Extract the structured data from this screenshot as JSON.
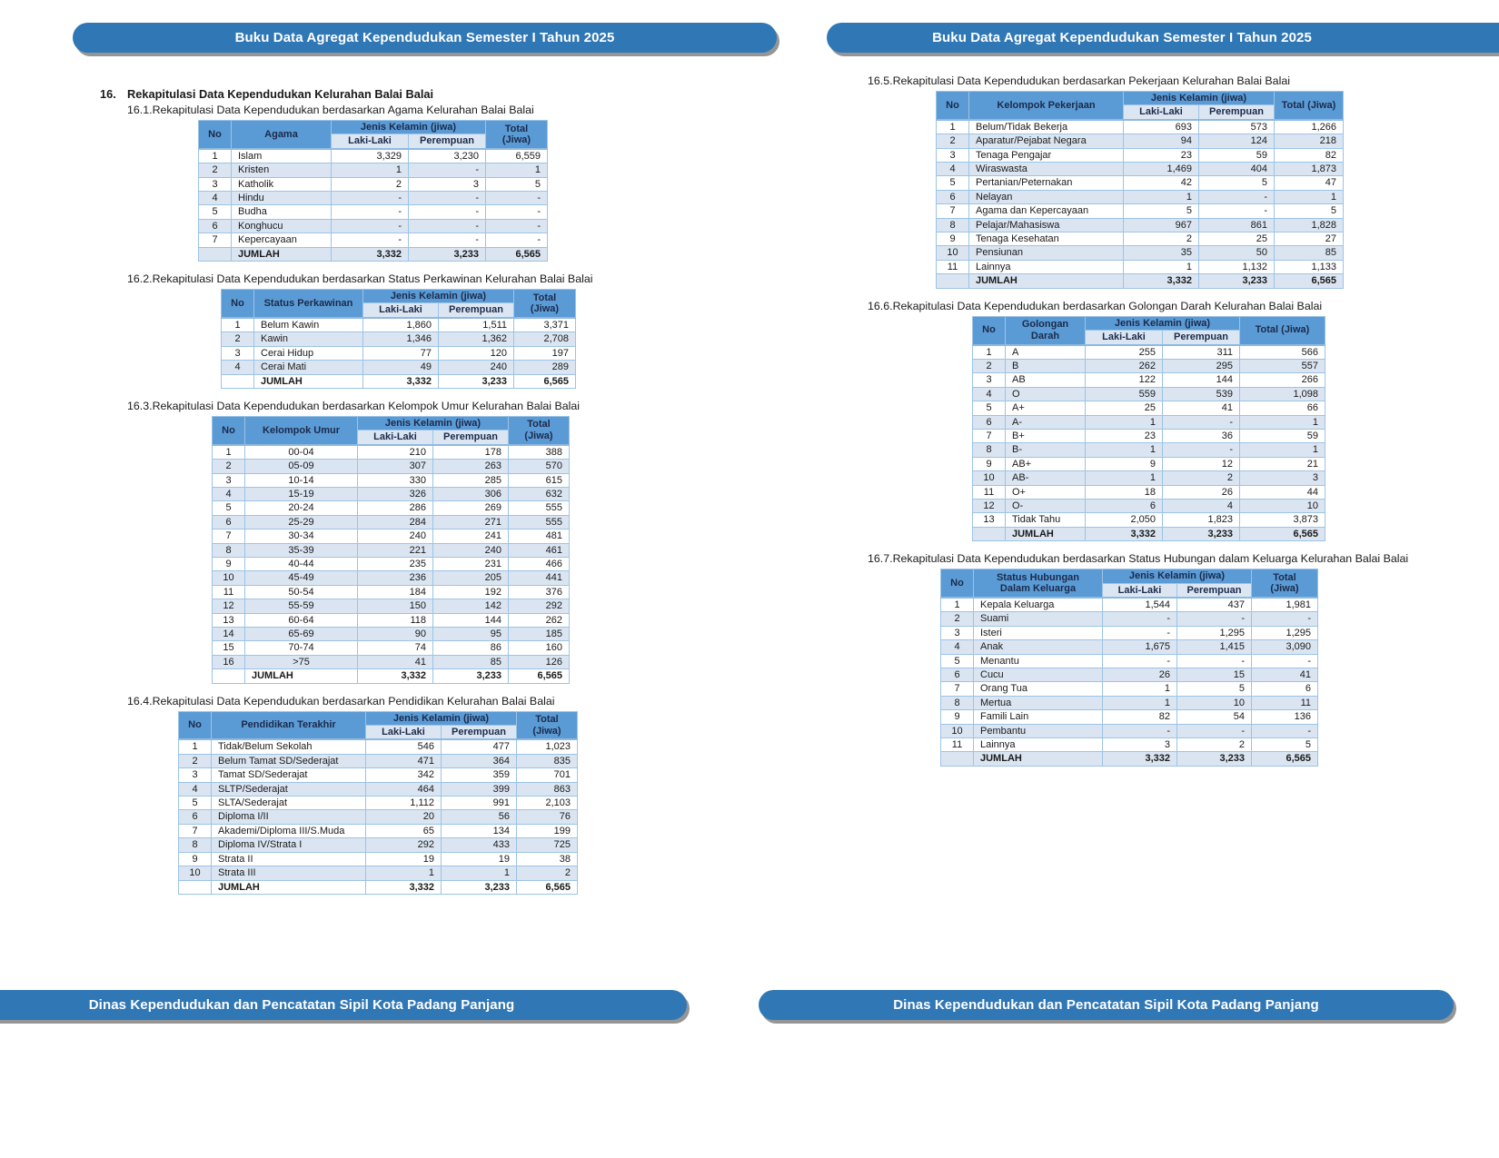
{
  "banner": {
    "header_title": "Buku Data Agregat Kependudukan Semester I Tahun 2025",
    "footer_title": "Dinas Kependudukan dan Pencatatan Sipil Kota Padang Panjang"
  },
  "section": {
    "number": "16.",
    "title": "Rekapitulasi Data Kependudukan Kelurahan Balai Balai"
  },
  "column_headers": {
    "no": "No",
    "gender_group": "Jenis Kelamin (jiwa)",
    "male": "Laki-Laki",
    "female": "Perempuan",
    "total": "Total (Jiwa)"
  },
  "sum_label": "JUMLAH",
  "colors": {
    "banner_blue": "#3077b5",
    "table_header_blue": "#5b9bd5",
    "subheader_blue": "#dce6f2",
    "alt_row_blue": "#dbe5f1",
    "border_blue": "#9cc3e6"
  },
  "tables": [
    {
      "number": "16.1.",
      "title": "Rekapitulasi Data Kependudukan berdasarkan Agama Kelurahan Balai Balai",
      "category_header": "Agama",
      "center_category": false,
      "rows": [
        [
          "1",
          "Islam",
          "3,329",
          "3,230",
          "6,559"
        ],
        [
          "2",
          "Kristen",
          "1",
          "-",
          "1"
        ],
        [
          "3",
          "Katholik",
          "2",
          "3",
          "5"
        ],
        [
          "4",
          "Hindu",
          "-",
          "-",
          "-"
        ],
        [
          "5",
          "Budha",
          "-",
          "-",
          "-"
        ],
        [
          "6",
          "Konghucu",
          "-",
          "-",
          "-"
        ],
        [
          "7",
          "Kepercayaan",
          "-",
          "-",
          "-"
        ]
      ],
      "total_row": [
        "3,332",
        "3,233",
        "6,565"
      ]
    },
    {
      "number": "16.2.",
      "title": "Rekapitulasi Data Kependudukan berdasarkan Status Perkawinan Kelurahan Balai Balai",
      "category_header": "Status Perkawinan",
      "center_category": false,
      "rows": [
        [
          "1",
          "Belum Kawin",
          "1,860",
          "1,511",
          "3,371"
        ],
        [
          "2",
          "Kawin",
          "1,346",
          "1,362",
          "2,708"
        ],
        [
          "3",
          "Cerai Hidup",
          "77",
          "120",
          "197"
        ],
        [
          "4",
          "Cerai Mati",
          "49",
          "240",
          "289"
        ]
      ],
      "total_row": [
        "3,332",
        "3,233",
        "6,565"
      ]
    },
    {
      "number": "16.3.",
      "title": "Rekapitulasi Data Kependudukan berdasarkan Kelompok Umur Kelurahan Balai Balai",
      "category_header": "Kelompok Umur",
      "center_category": true,
      "rows": [
        [
          "1",
          "00-04",
          "210",
          "178",
          "388"
        ],
        [
          "2",
          "05-09",
          "307",
          "263",
          "570"
        ],
        [
          "3",
          "10-14",
          "330",
          "285",
          "615"
        ],
        [
          "4",
          "15-19",
          "326",
          "306",
          "632"
        ],
        [
          "5",
          "20-24",
          "286",
          "269",
          "555"
        ],
        [
          "6",
          "25-29",
          "284",
          "271",
          "555"
        ],
        [
          "7",
          "30-34",
          "240",
          "241",
          "481"
        ],
        [
          "8",
          "35-39",
          "221",
          "240",
          "461"
        ],
        [
          "9",
          "40-44",
          "235",
          "231",
          "466"
        ],
        [
          "10",
          "45-49",
          "236",
          "205",
          "441"
        ],
        [
          "11",
          "50-54",
          "184",
          "192",
          "376"
        ],
        [
          "12",
          "55-59",
          "150",
          "142",
          "292"
        ],
        [
          "13",
          "60-64",
          "118",
          "144",
          "262"
        ],
        [
          "14",
          "65-69",
          "90",
          "95",
          "185"
        ],
        [
          "15",
          "70-74",
          "74",
          "86",
          "160"
        ],
        [
          "16",
          ">75",
          "41",
          "85",
          "126"
        ]
      ],
      "total_row": [
        "3,332",
        "3,233",
        "6,565"
      ]
    },
    {
      "number": "16.4.",
      "title": "Rekapitulasi Data Kependudukan berdasarkan Pendidikan Kelurahan Balai Balai",
      "category_header": "Pendidikan Terakhir",
      "center_category": false,
      "rows": [
        [
          "1",
          "Tidak/Belum Sekolah",
          "546",
          "477",
          "1,023"
        ],
        [
          "2",
          "Belum Tamat SD/Sederajat",
          "471",
          "364",
          "835"
        ],
        [
          "3",
          "Tamat SD/Sederajat",
          "342",
          "359",
          "701"
        ],
        [
          "4",
          "SLTP/Sederajat",
          "464",
          "399",
          "863"
        ],
        [
          "5",
          "SLTA/Sederajat",
          "1,112",
          "991",
          "2,103"
        ],
        [
          "6",
          "Diploma I/II",
          "20",
          "56",
          "76"
        ],
        [
          "7",
          "Akademi/Diploma III/S.Muda",
          "65",
          "134",
          "199"
        ],
        [
          "8",
          "Diploma IV/Strata I",
          "292",
          "433",
          "725"
        ],
        [
          "9",
          "Strata II",
          "19",
          "19",
          "38"
        ],
        [
          "10",
          "Strata III",
          "1",
          "1",
          "2"
        ]
      ],
      "total_row": [
        "3,332",
        "3,233",
        "6,565"
      ]
    },
    {
      "number": "16.5.",
      "title": "Rekapitulasi Data Kependudukan berdasarkan Pekerjaan Kelurahan Balai Balai",
      "category_header": "Kelompok Pekerjaan",
      "center_category": false,
      "rows": [
        [
          "1",
          "Belum/Tidak Bekerja",
          "693",
          "573",
          "1,266"
        ],
        [
          "2",
          "Aparatur/Pejabat Negara",
          "94",
          "124",
          "218"
        ],
        [
          "3",
          "Tenaga Pengajar",
          "23",
          "59",
          "82"
        ],
        [
          "4",
          "Wiraswasta",
          "1,469",
          "404",
          "1,873"
        ],
        [
          "5",
          "Pertanian/Peternakan",
          "42",
          "5",
          "47"
        ],
        [
          "6",
          "Nelayan",
          "1",
          "-",
          "1"
        ],
        [
          "7",
          "Agama dan Kepercayaan",
          "5",
          "-",
          "5"
        ],
        [
          "8",
          "Pelajar/Mahasiswa",
          "967",
          "861",
          "1,828"
        ],
        [
          "9",
          "Tenaga Kesehatan",
          "2",
          "25",
          "27"
        ],
        [
          "10",
          "Pensiunan",
          "35",
          "50",
          "85"
        ],
        [
          "11",
          "Lainnya",
          "1",
          "1,132",
          "1,133"
        ]
      ],
      "total_row": [
        "3,332",
        "3,233",
        "6,565"
      ]
    },
    {
      "number": "16.6.",
      "title": "Rekapitulasi Data Kependudukan berdasarkan Golongan Darah Kelurahan Balai Balai",
      "category_header": "Golongan Darah",
      "center_category": false,
      "rows": [
        [
          "1",
          "A",
          "255",
          "311",
          "566"
        ],
        [
          "2",
          "B",
          "262",
          "295",
          "557"
        ],
        [
          "3",
          "AB",
          "122",
          "144",
          "266"
        ],
        [
          "4",
          "O",
          "559",
          "539",
          "1,098"
        ],
        [
          "5",
          "A+",
          "25",
          "41",
          "66"
        ],
        [
          "6",
          "A-",
          "1",
          "-",
          "1"
        ],
        [
          "7",
          "B+",
          "23",
          "36",
          "59"
        ],
        [
          "8",
          "B-",
          "1",
          "-",
          "1"
        ],
        [
          "9",
          "AB+",
          "9",
          "12",
          "21"
        ],
        [
          "10",
          "AB-",
          "1",
          "2",
          "3"
        ],
        [
          "11",
          "O+",
          "18",
          "26",
          "44"
        ],
        [
          "12",
          "O-",
          "6",
          "4",
          "10"
        ],
        [
          "13",
          "Tidak Tahu",
          "2,050",
          "1,823",
          "3,873"
        ]
      ],
      "total_row": [
        "3,332",
        "3,233",
        "6,565"
      ]
    },
    {
      "number": "16.7.",
      "title": "Rekapitulasi Data Kependudukan berdasarkan Status Hubungan dalam Keluarga Kelurahan Balai Balai",
      "category_header": "Status Hubungan Dalam Keluarga",
      "center_category": false,
      "rows": [
        [
          "1",
          "Kepala Keluarga",
          "1,544",
          "437",
          "1,981"
        ],
        [
          "2",
          "Suami",
          "-",
          "-",
          "-"
        ],
        [
          "3",
          "Isteri",
          "-",
          "1,295",
          "1,295"
        ],
        [
          "4",
          "Anak",
          "1,675",
          "1,415",
          "3,090"
        ],
        [
          "5",
          "Menantu",
          "-",
          "-",
          "-"
        ],
        [
          "6",
          "Cucu",
          "26",
          "15",
          "41"
        ],
        [
          "7",
          "Orang Tua",
          "1",
          "5",
          "6"
        ],
        [
          "8",
          "Mertua",
          "1",
          "10",
          "11"
        ],
        [
          "9",
          "Famili Lain",
          "82",
          "54",
          "136"
        ],
        [
          "10",
          "Pembantu",
          "-",
          "-",
          "-"
        ],
        [
          "11",
          "Lainnya",
          "3",
          "2",
          "5"
        ]
      ],
      "total_row": [
        "3,332",
        "3,233",
        "6,565"
      ]
    }
  ]
}
